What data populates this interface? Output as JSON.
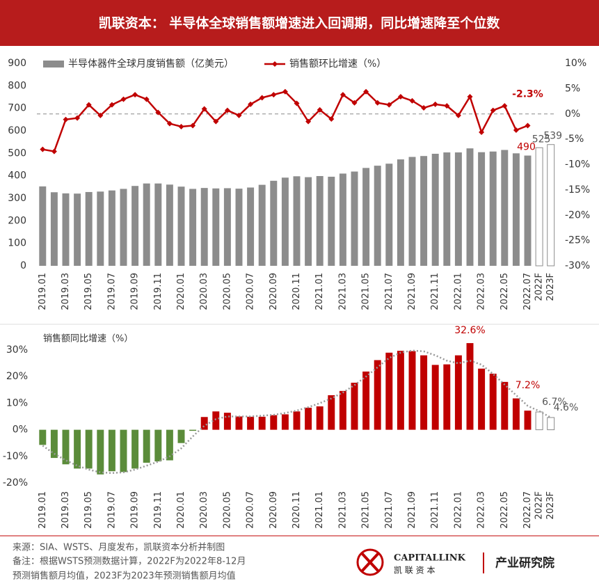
{
  "header": {
    "title": "凯联资本： 半导体全球销售额增速进入回调期，同比增速降至个位数"
  },
  "chart_data": [
    {
      "type": "combo",
      "legend": "top-left",
      "categories": [
        "2019.01",
        null,
        "2019.03",
        null,
        "2019.05",
        null,
        "2019.07",
        null,
        "2019.09",
        null,
        "2019.11",
        null,
        "2020.01",
        null,
        "2020.03",
        null,
        "2020.05",
        null,
        "2020.07",
        null,
        "2020.09",
        null,
        "2020.11",
        null,
        "2021.01",
        null,
        "2021.03",
        null,
        "2021.05",
        null,
        "2021.07",
        null,
        "2021.09",
        null,
        "2021.11",
        null,
        "2022.01",
        null,
        "2022.03",
        null,
        "2022.05",
        null,
        "2022.07",
        "2022F",
        "2023F"
      ],
      "ylim": [
        0,
        900
      ],
      "yticks": [
        0,
        100,
        200,
        300,
        400,
        500,
        600,
        700,
        800,
        900
      ],
      "y2lim": [
        -30,
        10
      ],
      "y2ticks": [
        {
          "value": -30,
          "label": "-30%"
        },
        {
          "value": -25,
          "label": "-25%"
        },
        {
          "value": -20,
          "label": "-20%"
        },
        {
          "value": -15,
          "label": "-15%"
        },
        {
          "value": -10,
          "label": "-10%"
        },
        {
          "value": -5,
          "label": "-5%"
        },
        {
          "value": 0,
          "label": "0%"
        },
        {
          "value": 5,
          "label": "5%"
        },
        {
          "value": 10,
          "label": "10%"
        }
      ],
      "zero_line": true,
      "series": [
        {
          "name": "半导体器件全球月度销售额（亿美元）",
          "type": "bar",
          "color": "#8c8c8c",
          "values": [
            353,
            327,
            322,
            321,
            328,
            330,
            335,
            342,
            355,
            366,
            366,
            361,
            352,
            342,
            346,
            344,
            345,
            343,
            348,
            360,
            378,
            392,
            398,
            394,
            399,
            396,
            410,
            419,
            435,
            445,
            454,
            473,
            484,
            488,
            498,
            504,
            504,
            522,
            505,
            508,
            515,
            500,
            490,
            525,
            539
          ]
        },
        {
          "name": "销售额环比增速（%）",
          "type": "line",
          "axis": "y2",
          "color": "#c00000",
          "values": [
            -7.0,
            -7.4,
            -1.1,
            -0.8,
            1.8,
            -0.3,
            1.8,
            2.9,
            3.8,
            2.9,
            0.3,
            -1.9,
            -2.5,
            -2.3,
            1.0,
            -1.5,
            0.7,
            -0.3,
            1.9,
            3.2,
            3.8,
            4.4,
            2.1,
            -1.5,
            0.8,
            -1.0,
            3.8,
            2.2,
            4.4,
            2.2,
            1.8,
            3.4,
            2.6,
            1.2,
            1.9,
            1.6,
            -0.3,
            3.4,
            -3.6,
            0.7,
            1.6,
            -3.2,
            -2.3,
            null,
            null
          ],
          "value_labels": [
            null,
            null,
            null,
            null,
            null,
            null,
            null,
            null,
            null,
            null,
            null,
            null,
            null,
            null,
            null,
            null,
            null,
            null,
            null,
            null,
            null,
            null,
            null,
            null,
            null,
            null,
            null,
            null,
            null,
            null,
            null,
            null,
            null,
            null,
            null,
            null,
            null,
            null,
            null,
            null,
            null,
            null,
            "-2.3%",
            null,
            null
          ]
        }
      ]
    },
    {
      "type": "bar",
      "title": "销售额同比增速（%）",
      "categories": [
        "2019.01",
        null,
        "2019.03",
        null,
        "2019.05",
        null,
        "2019.07",
        null,
        "2019.09",
        null,
        "2019.11",
        null,
        "2020.01",
        null,
        "2020.03",
        null,
        "2020.05",
        null,
        "2020.07",
        null,
        "2020.09",
        null,
        "2020.11",
        null,
        "2021.01",
        null,
        "2021.03",
        null,
        "2021.05",
        null,
        "2021.07",
        null,
        "2021.09",
        null,
        "2021.11",
        null,
        "2022.01",
        null,
        "2022.03",
        null,
        "2022.05",
        null,
        "2022.07",
        "2022F",
        "2023F"
      ],
      "ylim": [
        -20,
        30
      ],
      "yticks": [
        {
          "value": -20,
          "label": "-20%"
        },
        {
          "value": -10,
          "label": "-10%"
        },
        {
          "value": 0,
          "label": "0%"
        },
        {
          "value": 10,
          "label": "10%"
        },
        {
          "value": 20,
          "label": "20%"
        },
        {
          "value": 30,
          "label": "30%"
        }
      ],
      "colors": {
        "positive": "#c00000",
        "negative": "#5b8c3a"
      },
      "values": [
        -5.7,
        -10.6,
        -13.0,
        -14.6,
        -14.6,
        -16.8,
        -15.6,
        -15.9,
        -14.6,
        -12.4,
        -11.9,
        -11.5,
        -5.0,
        -0.4,
        4.8,
        6.9,
        6.4,
        5.0,
        4.9,
        4.9,
        5.5,
        5.8,
        6.9,
        8.3,
        8.8,
        13.0,
        14.6,
        17.7,
        21.9,
        26.2,
        29.0,
        29.7,
        29.6,
        28.0,
        24.4,
        24.6,
        28.0,
        32.6,
        23.0,
        21.1,
        18.0,
        11.8,
        7.2,
        6.7,
        4.6
      ],
      "value_labels": [
        null,
        null,
        null,
        null,
        null,
        null,
        null,
        null,
        null,
        null,
        null,
        null,
        null,
        null,
        null,
        null,
        null,
        null,
        null,
        null,
        null,
        null,
        null,
        null,
        null,
        null,
        null,
        null,
        null,
        null,
        null,
        null,
        null,
        null,
        null,
        null,
        null,
        "32.6%",
        null,
        null,
        null,
        null,
        "7.2%",
        "6.7%",
        "4.6%"
      ],
      "trend": {
        "color": "#999999",
        "values": [
          -6,
          -9,
          -11.5,
          -13.5,
          -15,
          -16,
          -16.3,
          -16,
          -15,
          -13.5,
          -12,
          -10,
          -7,
          -2.5,
          1.5,
          4,
          5,
          5,
          5,
          5.3,
          5.6,
          6.3,
          7.2,
          8.5,
          10,
          11.8,
          14,
          16.8,
          20,
          23.5,
          27,
          29,
          29.8,
          29.5,
          28,
          26,
          25,
          26,
          24.5,
          21,
          17,
          13,
          9,
          7,
          4.6
        ]
      }
    }
  ],
  "footer": {
    "notes": [
      "来源：SIA、WSTS、月度发布，凯联资本分析并制图",
      "备注：根据WSTS预测数据计算，2022F为2022年8-12月",
      "预测销售额月均值，2023F为2023年预测销售额月均值"
    ],
    "brand": "CAPITALLINK",
    "brand_cn": "凯 联 资 本",
    "institute": "产业研究院"
  }
}
